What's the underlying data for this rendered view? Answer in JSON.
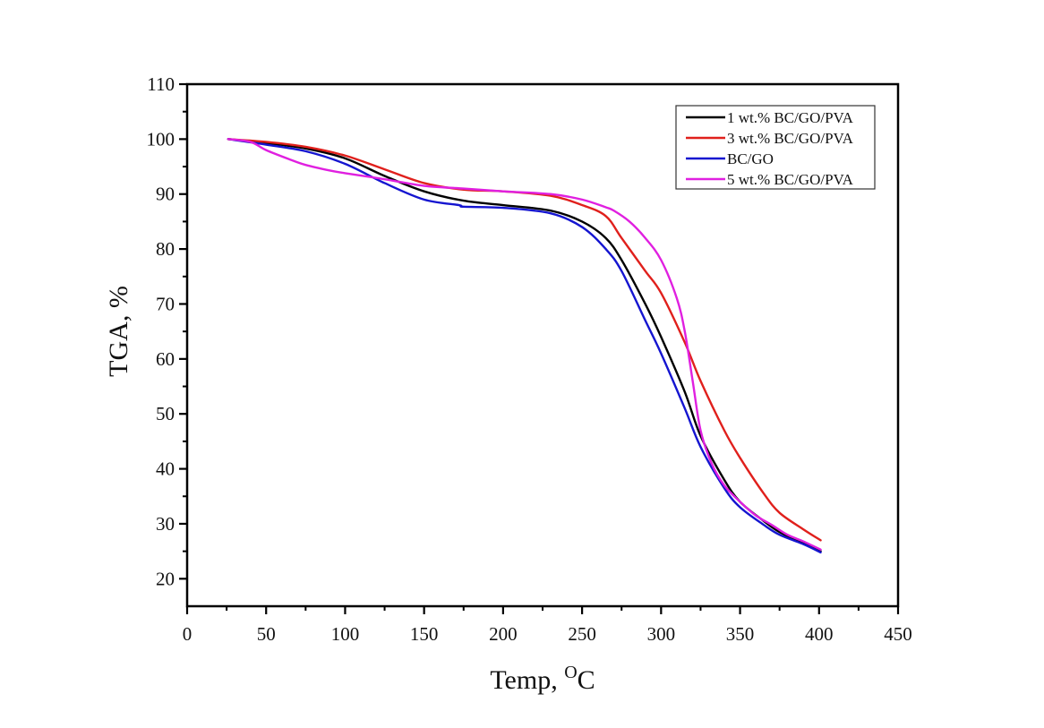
{
  "chart_data": {
    "type": "line",
    "title": "",
    "xlabel": "Temp, ",
    "xlabel_sup": "O",
    "xlabel_unit": "C",
    "ylabel": "TGA, %",
    "xlim": [
      0,
      450
    ],
    "ylim": [
      15,
      110
    ],
    "xticks": [
      0,
      50,
      100,
      150,
      200,
      250,
      300,
      350,
      400,
      450
    ],
    "yticks": [
      20,
      30,
      40,
      50,
      60,
      70,
      80,
      90,
      100,
      110
    ],
    "grid": false,
    "legend_position": "top-right",
    "series": [
      {
        "name": "1 wt.% BC/GO/PVA",
        "color": "#000000",
        "x": [
          26,
          50,
          75,
          100,
          125,
          150,
          175,
          200,
          230,
          250,
          265,
          275,
          290,
          300,
          315,
          325,
          340,
          350,
          365,
          375,
          390,
          401
        ],
        "y": [
          100,
          99.3,
          98.3,
          96.5,
          93.3,
          90.5,
          88.8,
          88,
          87,
          85,
          82,
          78,
          70,
          64,
          54,
          46,
          38,
          34,
          30.5,
          28.5,
          26.5,
          25
        ]
      },
      {
        "name": "3 wt.% BC/GO/PVA",
        "color": "#e0201c",
        "x": [
          26,
          50,
          75,
          100,
          125,
          150,
          175,
          200,
          230,
          250,
          265,
          275,
          290,
          300,
          315,
          325,
          340,
          350,
          365,
          375,
          390,
          401
        ],
        "y": [
          100,
          99.5,
          98.6,
          97,
          94.5,
          92,
          90.8,
          90.5,
          89.7,
          88,
          86,
          82,
          76,
          72,
          63,
          56,
          47,
          42,
          35.5,
          32,
          29,
          27
        ]
      },
      {
        "name": "BC/GO",
        "color": "#1515d0",
        "x": [
          26,
          50,
          75,
          100,
          125,
          150,
          172,
          175,
          200,
          230,
          250,
          265,
          275,
          290,
          300,
          315,
          325,
          340,
          350,
          365,
          375,
          390,
          401
        ],
        "y": [
          100,
          99,
          97.8,
          95.5,
          92,
          89,
          88,
          87.7,
          87.5,
          86.5,
          84,
          80,
          76,
          67,
          61,
          51,
          44,
          36.5,
          33,
          29.8,
          28,
          26.3,
          24.8
        ]
      },
      {
        "name": "5 wt.% BC/GO/PVA",
        "color": "#e020e0",
        "x": [
          26,
          40,
          50,
          65,
          75,
          90,
          100,
          125,
          150,
          175,
          200,
          230,
          250,
          265,
          270,
          280,
          290,
          300,
          310,
          315,
          320,
          325,
          332,
          340,
          350,
          360,
          370,
          380,
          390,
          401
        ],
        "y": [
          100,
          99.5,
          98,
          96.3,
          95.3,
          94.3,
          93.8,
          92.7,
          91.5,
          91,
          90.5,
          90,
          89,
          87.6,
          87,
          85,
          82,
          78,
          71,
          65,
          56,
          47,
          41,
          37,
          34,
          31.5,
          29.8,
          28,
          26.8,
          25.3
        ]
      }
    ]
  }
}
